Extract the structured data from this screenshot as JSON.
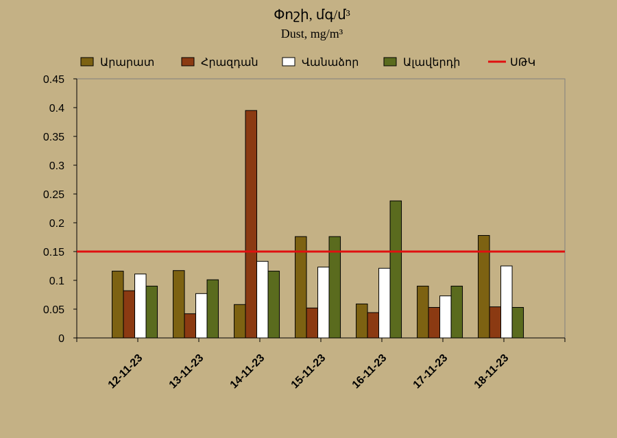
{
  "chart_data": {
    "type": "bar",
    "title": "Փոշի, մգ/մ³",
    "subtitle": "Dust, mg/m³",
    "categories": [
      "12-11-23",
      "13-11-23",
      "14-11-23",
      "15-11-23",
      "16-11-23",
      "17-11-23",
      "18-11-23"
    ],
    "series": [
      {
        "name": "Արարատ",
        "color": "#7d6212",
        "values": [
          0.116,
          0.117,
          0.058,
          0.176,
          0.059,
          0.09,
          0.178
        ]
      },
      {
        "name": "Հրազդան",
        "color": "#8b3a12",
        "values": [
          0.082,
          0.042,
          0.395,
          0.052,
          0.044,
          0.053,
          0.054
        ]
      },
      {
        "name": "Վանաձոր",
        "color": "#ffffff",
        "values": [
          0.111,
          0.077,
          0.133,
          0.123,
          0.121,
          0.073,
          0.125
        ]
      },
      {
        "name": "Ալավերդի",
        "color": "#5a6b1e",
        "values": [
          0.09,
          0.101,
          0.116,
          0.176,
          0.238,
          0.09,
          0.053
        ]
      }
    ],
    "reference_line": {
      "name": "ՍԹԿ",
      "value": 0.15,
      "color": "#e01010"
    },
    "yticks": [
      "0",
      "0.05",
      "0.1",
      "0.15",
      "0.2",
      "0.25",
      "0.3",
      "0.35",
      "0.4",
      "0.45"
    ],
    "ylim": [
      0,
      0.45
    ],
    "grid": false,
    "legend_position": "top"
  }
}
